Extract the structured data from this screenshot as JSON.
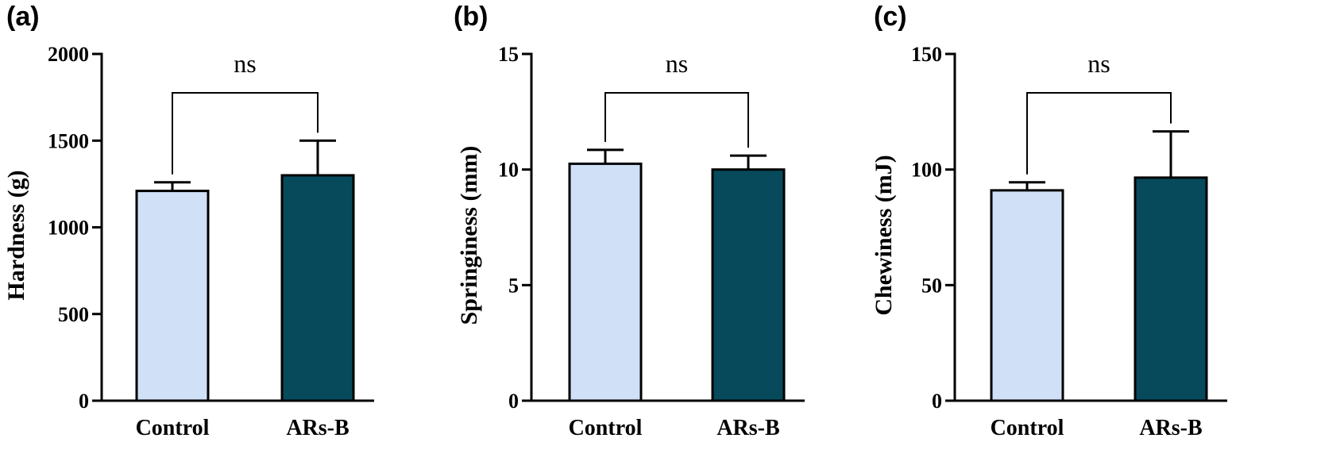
{
  "chart_data": [
    {
      "type": "bar",
      "panel_label": "(a)",
      "categories": [
        "Control",
        "ARs-B"
      ],
      "values": [
        1210,
        1300
      ],
      "errors": [
        50,
        200
      ],
      "ylabel": "Hardness (g)",
      "ylim": [
        0,
        2000
      ],
      "yticks": [
        0,
        500,
        1000,
        1500,
        2000
      ],
      "ytick_labels": [
        "0",
        "500",
        "1000",
        "1500",
        "2000"
      ],
      "bar_colors": [
        "#cfe0f7",
        "#064a5c"
      ],
      "significance": "ns"
    },
    {
      "type": "bar",
      "panel_label": "(b)",
      "categories": [
        "Control",
        "ARs-B"
      ],
      "values": [
        10.25,
        10.0
      ],
      "errors": [
        0.6,
        0.6
      ],
      "ylabel": "Springiness (mm)",
      "ylim": [
        0,
        15
      ],
      "yticks": [
        0,
        5,
        10,
        15
      ],
      "ytick_labels": [
        "0",
        "5",
        "10",
        "15"
      ],
      "bar_colors": [
        "#cfe0f7",
        "#064a5c"
      ],
      "significance": "ns"
    },
    {
      "type": "bar",
      "panel_label": "(c)",
      "categories": [
        "Control",
        "ARs-B"
      ],
      "values": [
        91,
        96.5
      ],
      "errors": [
        3.5,
        20
      ],
      "ylabel": "Chewiness (mJ)",
      "ylim": [
        0,
        150
      ],
      "yticks": [
        0,
        50,
        100,
        150
      ],
      "ytick_labels": [
        "0",
        "50",
        "100",
        "150"
      ],
      "bar_colors": [
        "#cfe0f7",
        "#064a5c"
      ],
      "significance": "ns"
    }
  ]
}
